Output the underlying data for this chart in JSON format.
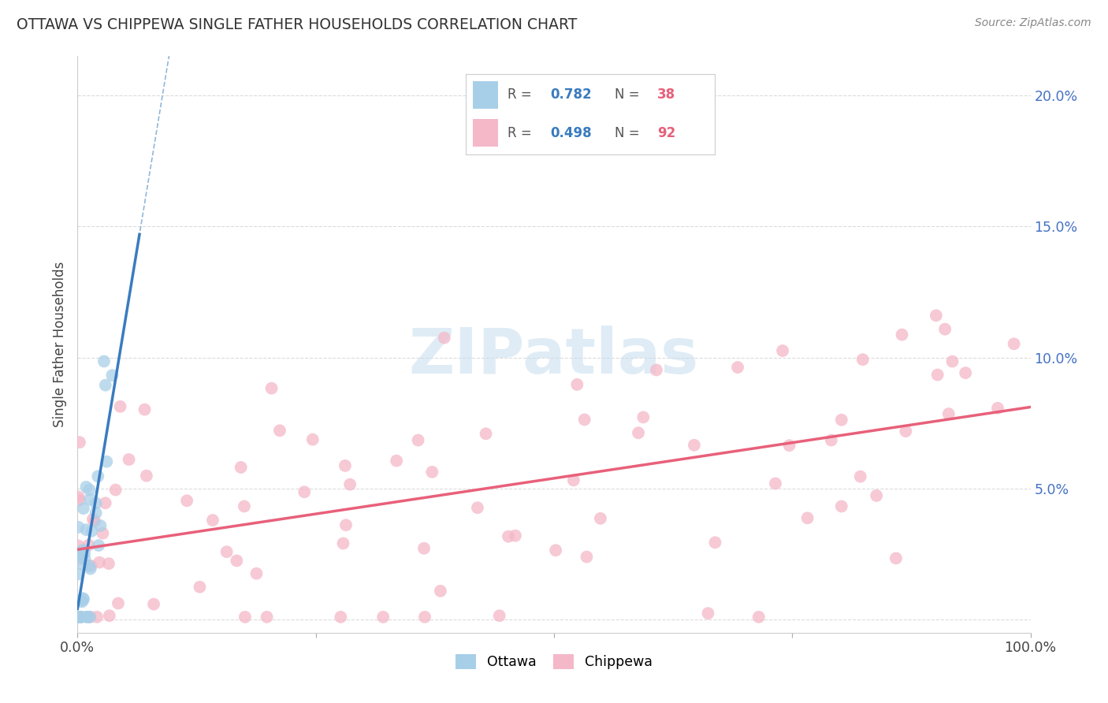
{
  "title": "OTTAWA VS CHIPPEWA SINGLE FATHER HOUSEHOLDS CORRELATION CHART",
  "source": "Source: ZipAtlas.com",
  "ylabel": "Single Father Households",
  "watermark": "ZIPatlas",
  "xlim": [
    0.0,
    1.0
  ],
  "ylim": [
    -0.005,
    0.215
  ],
  "yticks": [
    0.0,
    0.05,
    0.1,
    0.15,
    0.2
  ],
  "ytick_labels": [
    "",
    "5.0%",
    "10.0%",
    "15.0%",
    "20.0%"
  ],
  "ottawa_color": "#a8cfe8",
  "chippewa_color": "#f4b8c8",
  "ottawa_line_color": "#3a7bbf",
  "chippewa_line_color": "#e8607a",
  "ottawa_R": 0.782,
  "ottawa_N": 38,
  "chippewa_R": 0.498,
  "chippewa_N": 92,
  "legend_val_color": "#3a7bbf",
  "legend_n_color": "#e8607a",
  "background_color": "#ffffff",
  "grid_color": "#d8d8d8",
  "title_color": "#333333",
  "tick_color": "#4472c4"
}
